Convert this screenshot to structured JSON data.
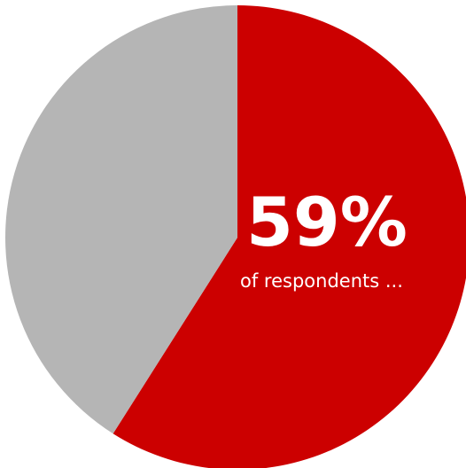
{
  "chart_data": {
    "type": "pie",
    "slices": [
      {
        "value": 59,
        "color": "#cc0000"
      },
      {
        "value": 41,
        "color": "#b5b5b5"
      }
    ],
    "center_label": {
      "value_text": "59%",
      "caption": "of respondents ..."
    }
  }
}
